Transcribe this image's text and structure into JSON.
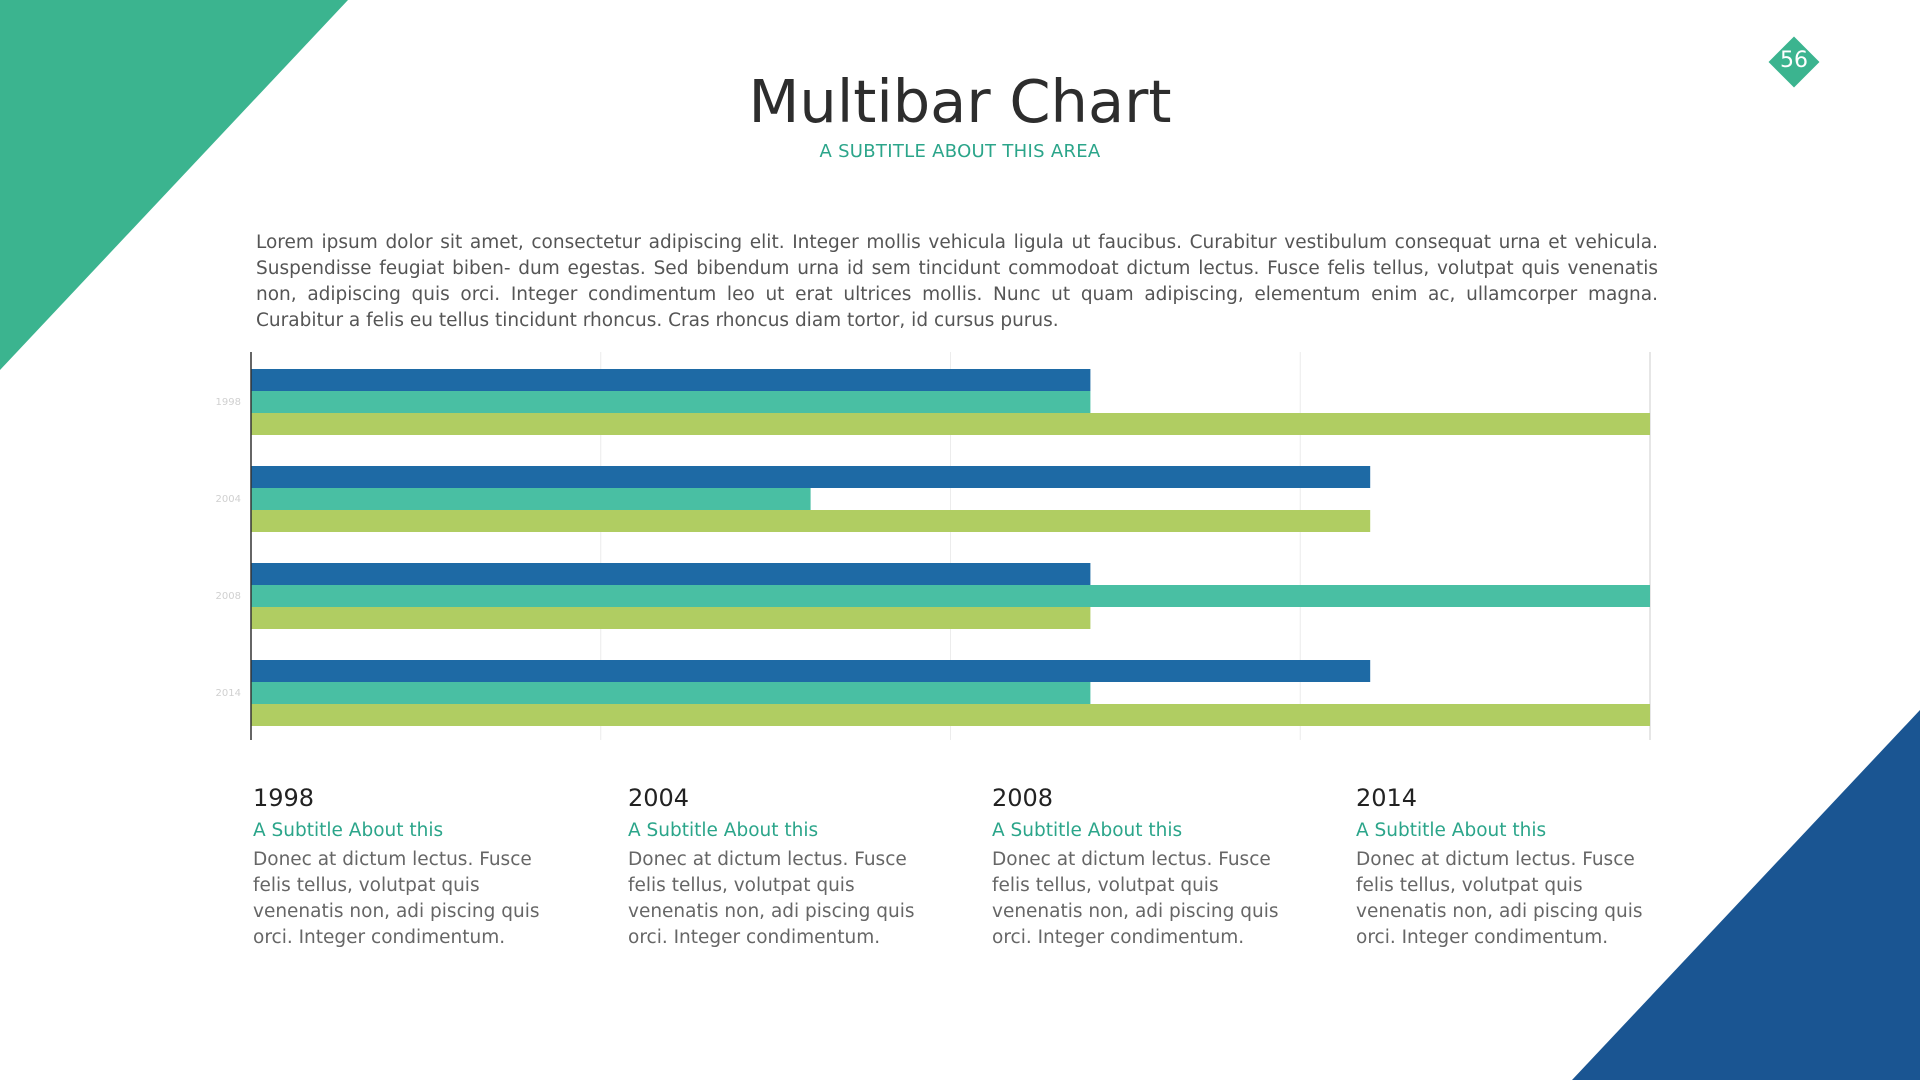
{
  "slide": {
    "title": "Multibar Chart",
    "subtitle": "A SUBTITLE ABOUT THIS AREA",
    "page_number": "56",
    "intro": "Lorem ipsum dolor sit amet, consectetur adipiscing elit. Integer mollis vehicula ligula ut faucibus. Curabitur vestibulum consequat urna et vehicula. Suspendisse feugiat biben- dum egestas. Sed bibendum urna id sem tincidunt commodoat dictum lectus. Fusce felis tellus, volutpat quis venenatis non, adipiscing quis orci. Integer condimentum leo ut erat ultrices mollis. Nunc ut quam adipiscing, elementum enim ac, ullamcorper magna. Curabitur a felis eu tellus tincidunt rhoncus. Cras rhoncus diam tortor, id cursus purus."
  },
  "colors": {
    "green_corner": "#3bb48f",
    "blue_corner": "#1a5592",
    "series_1": "#1e6aa5",
    "series_2": "#49bfa3",
    "series_3": "#b0cd62",
    "accent": "#2ba58a"
  },
  "chart_data": {
    "type": "bar",
    "orientation": "horizontal",
    "categories": [
      "1998",
      "2004",
      "2008",
      "2014"
    ],
    "series": [
      {
        "values": [
          3,
          4,
          3,
          4
        ]
      },
      {
        "values": [
          3,
          2,
          5,
          3
        ]
      },
      {
        "values": [
          5,
          4,
          3,
          5
        ]
      }
    ],
    "xlim": [
      0,
      5
    ],
    "grid": true,
    "legend": "none"
  },
  "columns": [
    {
      "year": "1998",
      "subtitle": "A Subtitle About this",
      "text": "Donec at dictum lectus. Fusce felis tellus, volutpat quis venenatis non, adi piscing quis orci. Integer condimentum."
    },
    {
      "year": "2004",
      "subtitle": "A Subtitle About this",
      "text": "Donec at dictum lectus. Fusce felis tellus, volutpat quis venenatis non, adi piscing quis orci. Integer condimentum."
    },
    {
      "year": "2008",
      "subtitle": "A Subtitle About this",
      "text": "Donec at dictum lectus. Fusce felis tellus, volutpat quis venenatis non, adi piscing quis orci. Integer condimentum."
    },
    {
      "year": "2014",
      "subtitle": "A Subtitle About this",
      "text": "Donec at dictum lectus. Fusce felis tellus, volutpat quis venenatis non, adi piscing quis orci. Integer condimentum."
    }
  ]
}
